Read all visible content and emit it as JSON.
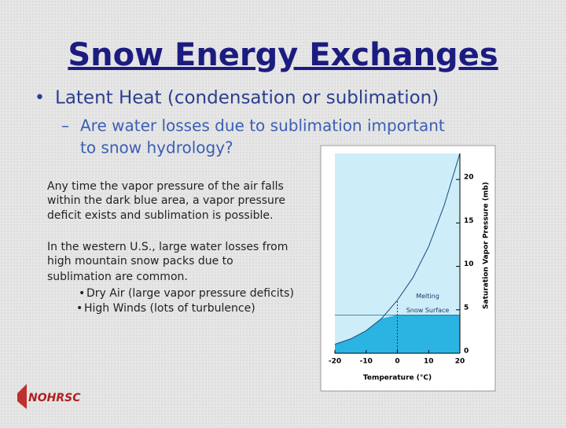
{
  "title": "Snow Energy Exchanges",
  "bullet": "Latent Heat (condensation or sublimation)",
  "sub_bullet": [
    "Are water losses due to sublimation important",
    "to snow hydrology?"
  ],
  "paragraph_1": [
    "Any time the vapor pressure of the air falls",
    "within the dark blue area, a vapor pressure",
    "deficit exists and sublimation is possible."
  ],
  "paragraph_2": [
    "In the western U.S., large water losses from",
    "high mountain snow packs due to",
    "sublimation are common."
  ],
  "list": [
    "Dry Air (large vapor pressure deficits)",
    "High Winds (lots of turbulence)"
  ],
  "logo": "NOHRSC",
  "chart_data": {
    "type": "area",
    "x": [
      -20,
      -15,
      -10,
      -5,
      0,
      5,
      10,
      15,
      20
    ],
    "values": [
      1.03,
      1.65,
      2.6,
      4.02,
      6.11,
      8.72,
      12.27,
      17.04,
      23.0
    ],
    "xlim": [
      -20,
      20
    ],
    "xticks": [
      -20,
      -10,
      0,
      10,
      20
    ],
    "ylim": [
      0,
      23
    ],
    "yticks": [
      0,
      5,
      10,
      15,
      20
    ],
    "xlabel": "Temperature (°C)",
    "ylabel": "Saturation Vapor Pressure (mb)",
    "melting_point": 0,
    "melting_label": "Melting",
    "snow_surface_vp": 4.4,
    "snow_surface_label": "Snow Surface",
    "light_color": "#cdeef9",
    "dark_color": "#2bb3e2",
    "line_color": "#1a4a7a"
  }
}
